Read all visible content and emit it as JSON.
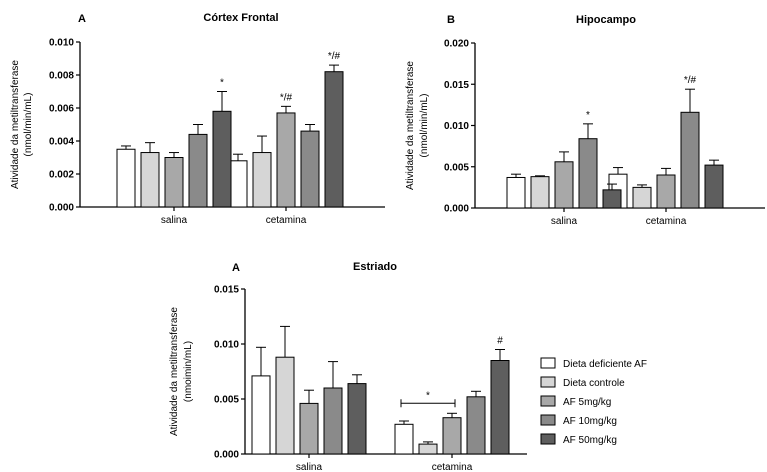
{
  "chart_data": [
    {
      "type": "bar",
      "panel_label": "A",
      "title": "Córtex Frontal",
      "ylabel": "Atividade da metiltransferase",
      "ylabel_unit": "(nmol/min/mL)",
      "categories": [
        "salina",
        "cetamina"
      ],
      "ylim": [
        0,
        0.01
      ],
      "yticks": [
        "0.000",
        "0.002",
        "0.004",
        "0.006",
        "0.008",
        "0.010"
      ],
      "series": [
        {
          "name": "Dieta deficiente AF",
          "values": [
            0.0035,
            0.0028
          ],
          "errors": [
            0.0002,
            0.0004
          ]
        },
        {
          "name": "Dieta controle",
          "values": [
            0.0033,
            0.0033
          ],
          "errors": [
            0.0006,
            0.001
          ]
        },
        {
          "name": "AF 5mg/kg",
          "values": [
            0.003,
            0.0057
          ],
          "errors": [
            0.0003,
            0.0004
          ]
        },
        {
          "name": "AF 10mg/kg",
          "values": [
            0.0044,
            0.0046
          ],
          "errors": [
            0.0006,
            0.0004
          ]
        },
        {
          "name": "AF 50mg/kg",
          "values": [
            0.0058,
            0.0082
          ],
          "errors": [
            0.0012,
            0.0004
          ]
        }
      ],
      "annotations": [
        {
          "category": 0,
          "series": 4,
          "text": "*"
        },
        {
          "category": 1,
          "series": 2,
          "text": "*/#"
        },
        {
          "category": 1,
          "series": 4,
          "text": "*/#"
        }
      ]
    },
    {
      "type": "bar",
      "panel_label": "B",
      "title": "Hipocampo",
      "ylabel": "Atividade da metiltransferase",
      "ylabel_unit": "(nmol/min/mL)",
      "categories": [
        "salina",
        "cetamina"
      ],
      "ylim": [
        0,
        0.02
      ],
      "yticks": [
        "0.000",
        "0.005",
        "0.010",
        "0.015",
        "0.020"
      ],
      "series": [
        {
          "name": "Dieta deficiente AF",
          "values": [
            0.0037,
            0.0041
          ],
          "errors": [
            0.0004,
            0.0008
          ]
        },
        {
          "name": "Dieta controle",
          "values": [
            0.0038,
            0.0025
          ],
          "errors": [
            0.0001,
            0.0003
          ]
        },
        {
          "name": "AF 5mg/kg",
          "values": [
            0.0056,
            0.004
          ],
          "errors": [
            0.0012,
            0.0008
          ]
        },
        {
          "name": "AF 10mg/kg",
          "values": [
            0.0084,
            0.0116
          ],
          "errors": [
            0.0018,
            0.0028
          ]
        },
        {
          "name": "AF 50mg/kg",
          "values": [
            0.0022,
            0.0052
          ],
          "errors": [
            0.0007,
            0.0006
          ]
        }
      ],
      "annotations": [
        {
          "category": 0,
          "series": 3,
          "text": "*"
        },
        {
          "category": 1,
          "series": 3,
          "text": "*/#"
        }
      ]
    },
    {
      "type": "bar",
      "panel_label": "A",
      "title": "Estriado",
      "ylabel": "Atividade da metiltransferase",
      "ylabel_unit": "(nmoimin/mL)",
      "categories": [
        "salina",
        "cetamina"
      ],
      "ylim": [
        0,
        0.015
      ],
      "yticks": [
        "0.000",
        "0.005",
        "0.010",
        "0.015"
      ],
      "series": [
        {
          "name": "Dieta deficiente AF",
          "values": [
            0.0071,
            0.0027
          ],
          "errors": [
            0.0026,
            0.0003
          ]
        },
        {
          "name": "Dieta controle",
          "values": [
            0.0088,
            0.0009
          ],
          "errors": [
            0.0028,
            0.0002
          ]
        },
        {
          "name": "AF 5mg/kg",
          "values": [
            0.0046,
            0.0033
          ],
          "errors": [
            0.0012,
            0.0004
          ]
        },
        {
          "name": "AF 10mg/kg",
          "values": [
            0.006,
            0.0052
          ],
          "errors": [
            0.0024,
            0.0005
          ]
        },
        {
          "name": "AF 50mg/kg",
          "values": [
            0.0064,
            0.0085
          ],
          "errors": [
            0.0008,
            0.001
          ]
        }
      ],
      "annotations": [
        {
          "category": 1,
          "series": 4,
          "text": "#"
        }
      ],
      "brackets": [
        {
          "category": 1,
          "from_series": 0,
          "to_series": 2,
          "text": "*"
        }
      ],
      "legend": {
        "placement": "right"
      }
    }
  ],
  "colors": {
    "Dieta deficiente AF": "#ffffff",
    "Dieta controle": "#d6d6d6",
    "AF 5mg/kg": "#a8a8a8",
    "AF 10mg/kg": "#8a8a8a",
    "AF 50mg/kg": "#5e5e5e"
  }
}
